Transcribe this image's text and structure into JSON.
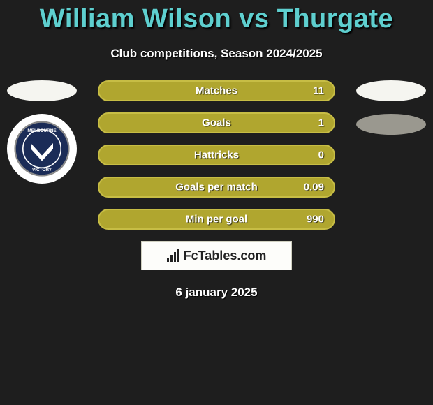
{
  "title": "William Wilson vs Thurgate",
  "subtitle": "Club competitions, Season 2024/2025",
  "date": "6 january 2025",
  "colors": {
    "title_color": "#5ecfcf",
    "background": "#1e1e1e",
    "bar_fill": "#b0a62f",
    "bar_border": "#c7bd45",
    "text": "#ffffff",
    "oval_left": "#f5f5f0",
    "oval_right_top": "#f5f5f0",
    "oval_right_bottom": "#9a988f",
    "footer_bg": "#fdfdfa"
  },
  "left_side": {
    "oval_color_key": "oval-white",
    "club_badge": {
      "name": "Melbourne Victory",
      "text_top": "MELBOURNE",
      "text_bottom": "VICTORY",
      "primary": "#1b2c57",
      "chevron": "#ffffff",
      "outline": "#8a8a8a"
    }
  },
  "right_side": {
    "ovals": [
      "oval-white",
      "oval-grey"
    ]
  },
  "stats": {
    "type": "bar",
    "bar_fill": "#b0a62f",
    "bar_border": "#c7bd45",
    "label_fontsize": 15,
    "value_fontsize": 15,
    "rows": [
      {
        "label": "Matches",
        "value": "11"
      },
      {
        "label": "Goals",
        "value": "1"
      },
      {
        "label": "Hattricks",
        "value": "0"
      },
      {
        "label": "Goals per match",
        "value": "0.09"
      },
      {
        "label": "Min per goal",
        "value": "990"
      }
    ]
  },
  "footer_brand": "FcTables.com"
}
